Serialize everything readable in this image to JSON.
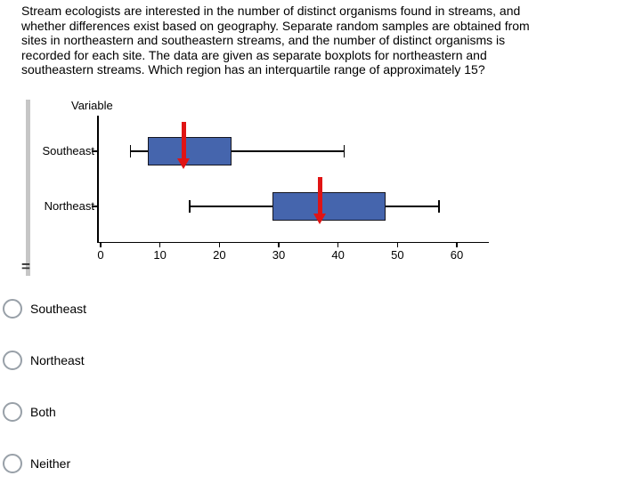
{
  "question": {
    "text": "Stream ecologists are interested in the number of distinct organisms found in streams, and\nwhether differences exist based on geography. Separate random samples are obtained from\nsites in northeastern and southeastern streams, and the number of distinct organisms is\nrecorded for each site. The data are given as separate boxplots for northeastern and\nsoutheastern streams. Which region has an interquartile range of approximately 15?"
  },
  "chart_data": {
    "type": "boxplot",
    "orientation": "horizontal",
    "title": "Variable",
    "categories": [
      "Southeast",
      "Northeast"
    ],
    "series": [
      {
        "name": "Southeast",
        "min": 5,
        "q1": 8,
        "median": 14,
        "q3": 22,
        "max": 41
      },
      {
        "name": "Northeast",
        "min": 15,
        "q1": 29,
        "median": 37,
        "q3": 48,
        "max": 57
      }
    ],
    "xlim": [
      0,
      60
    ],
    "xticks": [
      0,
      10,
      20,
      30,
      40,
      50,
      60
    ],
    "xlabel": "",
    "ylabel": "",
    "grid": false,
    "box_color": "#4565ad",
    "median_marker_color": "#e01414",
    "notes": "red vertical marker with downward arrow indicates median of each box"
  },
  "options": [
    {
      "label": "Southeast"
    },
    {
      "label": "Northeast"
    },
    {
      "label": "Both"
    },
    {
      "label": "Neither"
    }
  ],
  "handle": {
    "glyph": "="
  }
}
